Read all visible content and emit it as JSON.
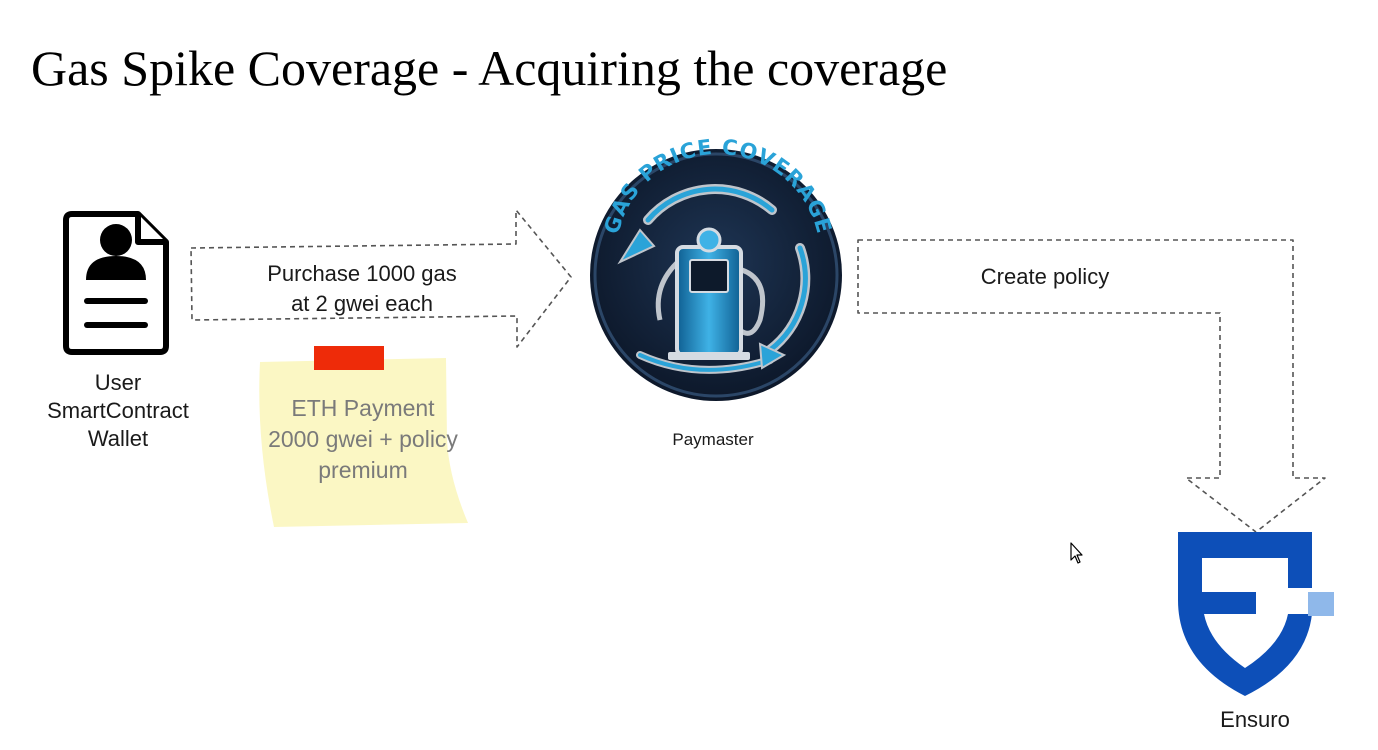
{
  "slide": {
    "title": "Gas Spike Coverage - Acquiring the coverage"
  },
  "nodes": {
    "user": {
      "icon": "user-contract-document-icon",
      "label_lines": [
        "User",
        "SmartContract",
        "Wallet"
      ]
    },
    "paymaster": {
      "icon": "gas-price-coverage-logo",
      "logo_text": "GAS PRICE COVERAGE",
      "label": "Paymaster"
    },
    "ensuro": {
      "icon": "ensuro-shield-logo",
      "label": "Ensuro"
    }
  },
  "edges": {
    "purchase": {
      "label_lines": [
        "Purchase 1000 gas",
        "at 2 gwei each"
      ]
    },
    "create_policy": {
      "label": "Create policy"
    }
  },
  "sticky_note": {
    "lines": [
      "ETH Payment",
      "2000 gwei + policy",
      "premium"
    ],
    "note_color": "#fbf7c4",
    "tape_color": "#ee2b09"
  },
  "colors": {
    "ensuro_blue": "#0d4fb8",
    "ensuro_light_blue": "#8fb8ea",
    "logo_cyan": "#2aa3d8",
    "logo_dark": "#13233a"
  }
}
